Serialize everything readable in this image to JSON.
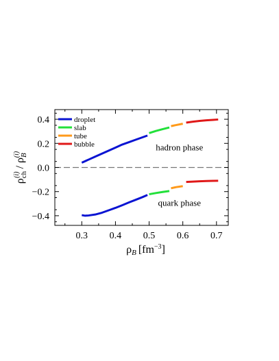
{
  "chart_data": {
    "type": "line",
    "xlabel_main": "ρ",
    "xlabel_sub": "B",
    "xlabel_unit": "[fm",
    "xlabel_exp": "−3",
    "xlabel_close": "]",
    "ylabel": {
      "num_main": "ρ",
      "num_sub": "ch",
      "num_sup": "(i)",
      "slash": " / ",
      "den_main": "ρ",
      "den_sub": "B",
      "den_sup": "(i)"
    },
    "xlim": [
      0.22,
      0.735
    ],
    "ylim": [
      -0.48,
      0.48
    ],
    "x_ticks": [
      0.3,
      0.4,
      0.5,
      0.6,
      0.7
    ],
    "x_tick_labels": [
      "0.3",
      "0.4",
      "0.5",
      "0.6",
      "0.7"
    ],
    "y_ticks": [
      -0.4,
      -0.2,
      0.0,
      0.2,
      0.4
    ],
    "y_tick_labels": [
      "−0.4",
      "−0.2",
      "0.0",
      "0.2",
      "0.4"
    ],
    "reference_line": {
      "y": 0.0,
      "style": "dashed"
    },
    "legend": {
      "placement": "top-left",
      "entries": [
        {
          "label": "droplet",
          "color": "#0a14d2"
        },
        {
          "label": "slab",
          "color": "#22e03a"
        },
        {
          "label": "tube",
          "color": "#ff9a1a"
        },
        {
          "label": "bubble",
          "color": "#e01818"
        }
      ]
    },
    "annotations": [
      {
        "text": "hadron phase",
        "x": 0.59,
        "y": 0.17
      },
      {
        "text": "quark phase",
        "x": 0.59,
        "y": -0.29
      }
    ],
    "series": [
      {
        "name": "droplet",
        "color": "#0a14d2",
        "phase": "hadron",
        "x": [
          0.3,
          0.32,
          0.34,
          0.36,
          0.38,
          0.4,
          0.42,
          0.44,
          0.46,
          0.48,
          0.495
        ],
        "y": [
          0.04,
          0.065,
          0.09,
          0.115,
          0.14,
          0.165,
          0.19,
          0.21,
          0.23,
          0.25,
          0.265
        ]
      },
      {
        "name": "slab",
        "color": "#22e03a",
        "phase": "hadron",
        "x": [
          0.5,
          0.52,
          0.54,
          0.56
        ],
        "y": [
          0.285,
          0.303,
          0.318,
          0.332
        ]
      },
      {
        "name": "tube",
        "color": "#ff9a1a",
        "phase": "hadron",
        "x": [
          0.565,
          0.58,
          0.6
        ],
        "y": [
          0.343,
          0.352,
          0.363
        ]
      },
      {
        "name": "bubble",
        "color": "#e01818",
        "phase": "hadron",
        "x": [
          0.61,
          0.63,
          0.65,
          0.67,
          0.69,
          0.705
        ],
        "y": [
          0.372,
          0.38,
          0.386,
          0.391,
          0.395,
          0.398
        ]
      },
      {
        "name": "droplet",
        "color": "#0a14d2",
        "phase": "quark",
        "x": [
          0.3,
          0.31,
          0.32,
          0.34,
          0.36,
          0.38,
          0.4,
          0.42,
          0.44,
          0.46,
          0.48,
          0.495
        ],
        "y": [
          -0.395,
          -0.4,
          -0.398,
          -0.39,
          -0.375,
          -0.355,
          -0.335,
          -0.313,
          -0.29,
          -0.268,
          -0.246,
          -0.228
        ]
      },
      {
        "name": "slab",
        "color": "#22e03a",
        "phase": "quark",
        "x": [
          0.5,
          0.52,
          0.54,
          0.56
        ],
        "y": [
          -0.222,
          -0.212,
          -0.203,
          -0.195
        ]
      },
      {
        "name": "tube",
        "color": "#ff9a1a",
        "phase": "quark",
        "x": [
          0.565,
          0.58,
          0.6
        ],
        "y": [
          -0.172,
          -0.163,
          -0.155
        ]
      },
      {
        "name": "bubble",
        "color": "#e01818",
        "phase": "quark",
        "x": [
          0.61,
          0.63,
          0.65,
          0.67,
          0.69,
          0.705
        ],
        "y": [
          -0.12,
          -0.117,
          -0.114,
          -0.112,
          -0.111,
          -0.11
        ]
      }
    ]
  }
}
